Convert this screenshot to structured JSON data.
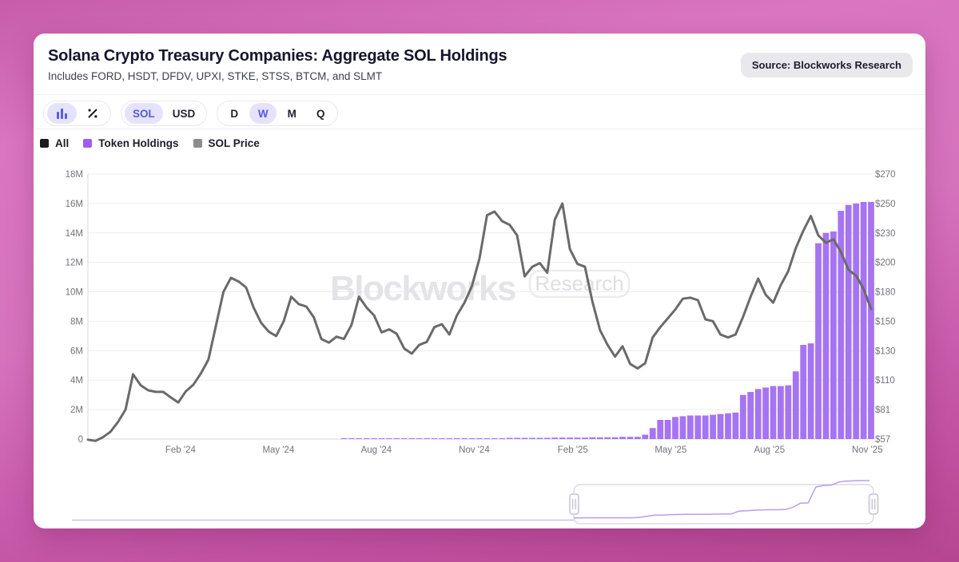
{
  "header": {
    "title": "Solana Crypto Treasury Companies: Aggregate SOL Holdings",
    "subtitle": "Includes FORD, HSDT, DFDV, UPXI, STKE, STSS, BTCM, and SLMT",
    "source_badge": "Source: Blockworks Research"
  },
  "toolbar": {
    "chart_type": {
      "options": [
        "bar-chart",
        "percent-change"
      ],
      "selected": "bar-chart"
    },
    "sol": "SOL",
    "usd": "USD",
    "selected_unit": "SOL",
    "d": "D",
    "w": "W",
    "m": "M",
    "q": "Q",
    "selected_interval": "W"
  },
  "legend": {
    "items": [
      {
        "label": "All",
        "color": "#1b1b1b"
      },
      {
        "label": "Token Holdings",
        "color": "#9a5ff0"
      },
      {
        "label": "SOL Price",
        "color": "#8b8b90"
      }
    ]
  },
  "watermark": {
    "brand": "Blockworks",
    "research": "Research"
  },
  "chart_data": {
    "type": "bar+line",
    "title": "Solana Crypto Treasury Companies: Aggregate SOL Holdings",
    "x": {
      "freq": "weekly",
      "start": "Nov 2023",
      "end": "Nov 2025",
      "tick_labels": [
        "Feb '24",
        "May '24",
        "Aug '24",
        "Nov '24",
        "Feb '25",
        "May '25",
        "Aug '25",
        "Nov '25"
      ],
      "tick_week_offsets": [
        12.3,
        25.3,
        38.3,
        51.3,
        64.4,
        77.4,
        90.5,
        103.5
      ]
    },
    "left_axis": {
      "label": "Aggregate SOL Holdings",
      "tick_labels": [
        "0",
        "2M",
        "4M",
        "6M",
        "8M",
        "10M",
        "12M",
        "14M",
        "16M",
        "18M"
      ],
      "max_millions": 18,
      "grid": true
    },
    "right_axis": {
      "label": "SOL Price",
      "tick_labels": [
        "$57",
        "$81",
        "$110",
        "$130",
        "$150",
        "$180",
        "$200",
        "$230",
        "$250",
        "$270"
      ],
      "tick_values": [
        57,
        81,
        110,
        130,
        150,
        180,
        200,
        230,
        250,
        270
      ],
      "scale": "non-linear, ticks equally spaced"
    },
    "series": [
      {
        "name": "Token Holdings",
        "type": "bar",
        "axis": "left",
        "unit": "SOL, millions",
        "color": "#a674f2",
        "values": [
          0,
          0,
          0,
          0,
          0,
          0,
          0,
          0,
          0,
          0,
          0,
          0,
          0,
          0,
          0,
          0,
          0,
          0,
          0,
          0,
          0,
          0,
          0,
          0,
          0,
          0,
          0,
          0,
          0,
          0,
          0,
          0,
          0,
          0,
          0.05,
          0.05,
          0.05,
          0.05,
          0.05,
          0.05,
          0.05,
          0.05,
          0.05,
          0.05,
          0.05,
          0.05,
          0.05,
          0.05,
          0.06,
          0.06,
          0.06,
          0.06,
          0.06,
          0.06,
          0.06,
          0.06,
          0.08,
          0.08,
          0.08,
          0.08,
          0.08,
          0.08,
          0.1,
          0.1,
          0.1,
          0.1,
          0.1,
          0.12,
          0.12,
          0.12,
          0.12,
          0.15,
          0.15,
          0.15,
          0.3,
          0.75,
          1.3,
          1.3,
          1.5,
          1.55,
          1.6,
          1.6,
          1.6,
          1.65,
          1.7,
          1.75,
          1.8,
          3.0,
          3.2,
          3.4,
          3.5,
          3.6,
          3.6,
          3.65,
          4.6,
          6.4,
          6.5,
          13.3,
          14.0,
          14.1,
          15.5,
          15.9,
          16.0,
          16.1,
          16.1
        ]
      },
      {
        "name": "SOL Price",
        "type": "line",
        "axis": "right",
        "unit": "USD",
        "color": "#6a6a6a",
        "values": [
          56.5,
          55.5,
          58.5,
          63,
          71,
          81,
          114,
          105,
          100,
          98.5,
          98.5,
          93,
          88,
          99,
          105.5,
          114.5,
          124,
          147,
          180,
          189.5,
          187,
          183,
          164,
          149,
          143,
          140,
          150,
          175,
          167.5,
          165,
          154,
          138,
          135.5,
          139.5,
          138,
          147.5,
          175,
          164,
          156,
          142.5,
          144.5,
          141.5,
          131.5,
          128,
          134,
          136,
          146,
          148,
          141,
          156,
          169,
          184,
          204,
          242,
          244.5,
          238,
          235.5,
          227.5,
          190.5,
          197,
          199.5,
          193,
          239,
          250,
          213.5,
          199,
          197,
          170,
          144,
          134,
          126,
          133,
          121,
          118,
          121.5,
          139,
          146,
          153,
          162,
          173,
          174,
          171.5,
          152,
          150,
          141,
          139,
          141,
          154.5,
          175,
          189,
          177,
          169,
          184.5,
          194,
          214.5,
          231.5,
          241.5,
          227.5,
          220,
          223.5,
          210.5,
          195,
          191,
          182,
          162.5
        ]
      }
    ],
    "legend_position": "top-left",
    "navigator": {
      "present": true,
      "series_shown": "Token Holdings",
      "mini_line_color": "#b79df0"
    }
  }
}
